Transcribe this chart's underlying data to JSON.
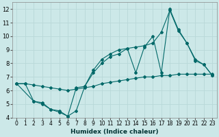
{
  "xlabel": "Humidex (Indice chaleur)",
  "bg_color": "#cce8e8",
  "grid_color": "#b8d8d8",
  "line_color": "#006868",
  "xlim": [
    -0.5,
    23.5
  ],
  "ylim": [
    4,
    12.5
  ],
  "xticks": [
    0,
    1,
    2,
    3,
    4,
    5,
    6,
    7,
    8,
    9,
    10,
    11,
    12,
    13,
    14,
    15,
    16,
    17,
    18,
    19,
    20,
    21,
    22,
    23
  ],
  "yticks": [
    4,
    5,
    6,
    7,
    8,
    9,
    10,
    11,
    12
  ],
  "line1_x": [
    0,
    1,
    2,
    3,
    4,
    5,
    6,
    7,
    8,
    9,
    10,
    11,
    12,
    13,
    14,
    15,
    16,
    17,
    18,
    19,
    20,
    21,
    22,
    23
  ],
  "line1_y": [
    6.5,
    6.5,
    5.2,
    5.0,
    4.6,
    4.4,
    4.1,
    4.5,
    6.3,
    7.3,
    8.0,
    8.5,
    8.7,
    9.1,
    7.3,
    9.2,
    10.0,
    7.3,
    12.0,
    10.5,
    9.5,
    8.3,
    7.9,
    7.1
  ],
  "line2_x": [
    0,
    2,
    3,
    4,
    5,
    6,
    7,
    8,
    9,
    10,
    11,
    12,
    13,
    14,
    15,
    16,
    17,
    18,
    19,
    20,
    21,
    22,
    23
  ],
  "line2_y": [
    6.5,
    5.2,
    5.1,
    4.6,
    4.5,
    4.1,
    6.2,
    6.3,
    7.5,
    8.3,
    8.7,
    9.0,
    9.1,
    9.2,
    9.3,
    9.5,
    10.3,
    11.9,
    10.4,
    9.5,
    8.2,
    7.9,
    7.1
  ],
  "line3_x": [
    0,
    1,
    2,
    3,
    4,
    5,
    6,
    7,
    8,
    9,
    10,
    11,
    12,
    13,
    14,
    15,
    16,
    17,
    18,
    19,
    20,
    21,
    22,
    23
  ],
  "line3_y": [
    6.5,
    6.5,
    6.4,
    6.3,
    6.2,
    6.1,
    6.0,
    6.1,
    6.2,
    6.3,
    6.5,
    6.6,
    6.7,
    6.8,
    6.9,
    7.0,
    7.0,
    7.1,
    7.1,
    7.2,
    7.2,
    7.2,
    7.2,
    7.2
  ]
}
